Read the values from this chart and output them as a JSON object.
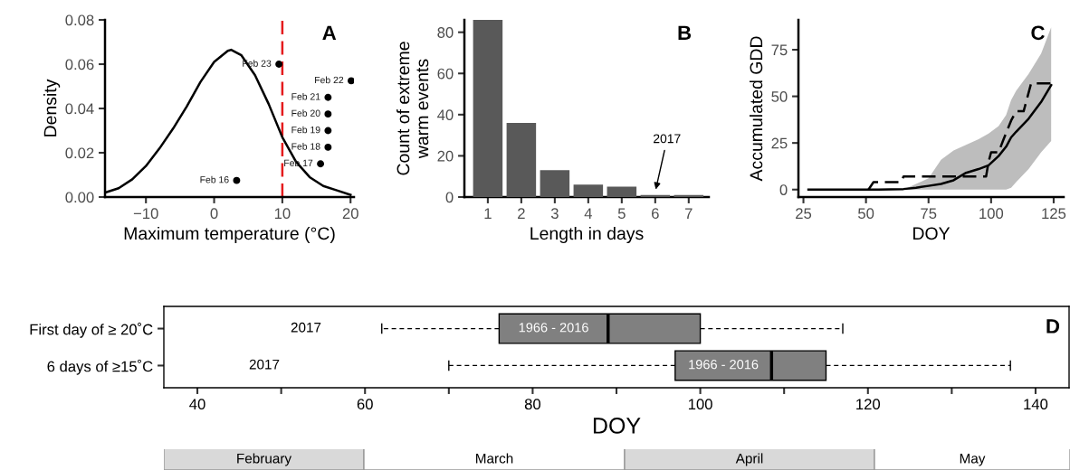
{
  "chart_data": [
    {
      "type": "line",
      "title": "A",
      "xlabel": "Maximum temperature (°C)",
      "ylabel": "Density",
      "xlim": [
        -16,
        20.5
      ],
      "ylim": [
        0,
        0.08
      ],
      "xticks": [
        {
          "value": -10,
          "label": "−10"
        },
        0,
        10,
        20
      ],
      "yticks": [
        {
          "value": 0,
          "label": "0.00"
        },
        {
          "value": 0.02,
          "label": "0.02"
        },
        {
          "value": 0.04,
          "label": "0.04"
        },
        {
          "value": 0.06,
          "label": "0.06"
        },
        {
          "value": 0.08,
          "label": "0.08"
        }
      ],
      "grid": false,
      "series": [
        {
          "type": "line",
          "color": "#000000",
          "x": [
            -16,
            -14,
            -12,
            -10,
            -8,
            -6,
            -4,
            -2,
            0,
            2,
            2.5,
            4,
            6,
            8,
            10,
            12,
            14,
            16,
            18,
            20
          ],
          "values": [
            0.002,
            0.004,
            0.008,
            0.014,
            0.022,
            0.031,
            0.041,
            0.052,
            0.061,
            0.066,
            0.0665,
            0.064,
            0.055,
            0.042,
            0.027,
            0.016,
            0.009,
            0.005,
            0.003,
            0.001
          ]
        },
        {
          "type": "scatter",
          "color": "#000000",
          "marker": "circle",
          "x": [
            3.3,
            15.6,
            16.7,
            16.7,
            16.7,
            16.7,
            20.1,
            9.5
          ],
          "values": [
            0.0075,
            0.015,
            0.0225,
            0.03,
            0.0375,
            0.045,
            0.0525,
            0.06
          ]
        }
      ],
      "ref_lines": [
        {
          "axis": "x",
          "value": 10,
          "color": "#e41a1c",
          "line_style": "dashed"
        }
      ],
      "annotations": [
        {
          "text": "Feb 16",
          "x": 3.3,
          "y": 0.0075
        },
        {
          "text": "Feb 17",
          "x": 15.6,
          "y": 0.015
        },
        {
          "text": "Feb 18",
          "x": 16.7,
          "y": 0.0225
        },
        {
          "text": "Feb 19",
          "x": 16.7,
          "y": 0.03
        },
        {
          "text": "Feb 20",
          "x": 16.7,
          "y": 0.0375
        },
        {
          "text": "Feb 21",
          "x": 16.7,
          "y": 0.045
        },
        {
          "text": "Feb 22",
          "x": 20.1,
          "y": 0.0525
        },
        {
          "text": "Feb 23",
          "x": 9.5,
          "y": 0.06
        }
      ]
    },
    {
      "type": "bar",
      "title": "B",
      "xlabel": "Length in days",
      "ylabel": "Count of extreme\nwarm events",
      "categories": [
        "1",
        "2",
        "3",
        "4",
        "5",
        "6",
        "7"
      ],
      "values": [
        86,
        36,
        13,
        6,
        5,
        1,
        1
      ],
      "color": "#595959",
      "ylim": [
        0,
        86
      ],
      "yticks": [
        0,
        20,
        40,
        60,
        80
      ],
      "grid": false,
      "annotations": [
        {
          "text": "2017",
          "x": "6",
          "y": 1
        }
      ]
    },
    {
      "type": "line",
      "title": "C",
      "xlabel": "DOY",
      "ylabel": "Accumulated GDD",
      "xlim": [
        23,
        129
      ],
      "ylim": [
        -4,
        91
      ],
      "xticks": [
        25,
        50,
        75,
        100,
        125
      ],
      "yticks": [
        0,
        25,
        50,
        75
      ],
      "grid": false,
      "series": [
        {
          "type": "line",
          "color": "#000000",
          "line_style": "solid",
          "x": [
            27,
            55,
            65,
            70,
            75,
            80,
            85,
            90,
            95,
            99,
            103,
            106,
            108,
            110,
            115,
            120,
            124
          ],
          "values": [
            0,
            0,
            0.3,
            1,
            2,
            3,
            5,
            9,
            11,
            13,
            18,
            23,
            28,
            31,
            38,
            47,
            56
          ],
          "lower": [
            0,
            0,
            0,
            0,
            0,
            0,
            0,
            0,
            0,
            0,
            0,
            0,
            1,
            4,
            11,
            20,
            26
          ],
          "upper": [
            0,
            0,
            0,
            3,
            6,
            16,
            21,
            24,
            27,
            30,
            34,
            40,
            48,
            53,
            62,
            73,
            87
          ]
        },
        {
          "type": "line",
          "color": "#000000",
          "line_style": "dashed",
          "x": [
            51,
            53,
            64,
            65,
            98,
            99,
            100,
            103,
            105,
            108,
            110,
            113,
            116,
            125
          ],
          "values": [
            0,
            4,
            4,
            7,
            7,
            15,
            20,
            20,
            27,
            37,
            42,
            42,
            57,
            57
          ]
        }
      ]
    },
    {
      "type": "box",
      "title": "D",
      "xlabel": "DOY",
      "orientation": "horizontal",
      "categories": [
        "First day of ≥ 20˚C",
        "6 days of ≥15˚C"
      ],
      "color": "#808080",
      "xlim": [
        36,
        144
      ],
      "xticks": [
        40,
        {
          "value": 50,
          "label": null
        },
        60,
        {
          "value": 70,
          "label": null
        },
        80,
        {
          "value": 90,
          "label": null
        },
        100,
        {
          "value": 110,
          "label": null
        },
        120,
        {
          "value": 130,
          "label": null
        },
        140
      ],
      "grid": false,
      "boxes": [
        {
          "low": 62,
          "q1": 76,
          "median": 89,
          "q3": 100,
          "high": 117
        },
        {
          "low": 70,
          "q1": 97,
          "median": 108.5,
          "q3": 115,
          "high": 137
        }
      ],
      "annotations": [
        "2017",
        "2017",
        "1966 - 2016",
        "1966 - 2016"
      ]
    },
    {
      "type": "other",
      "annotations": [
        "February",
        "March",
        "April",
        "May"
      ]
    }
  ]
}
